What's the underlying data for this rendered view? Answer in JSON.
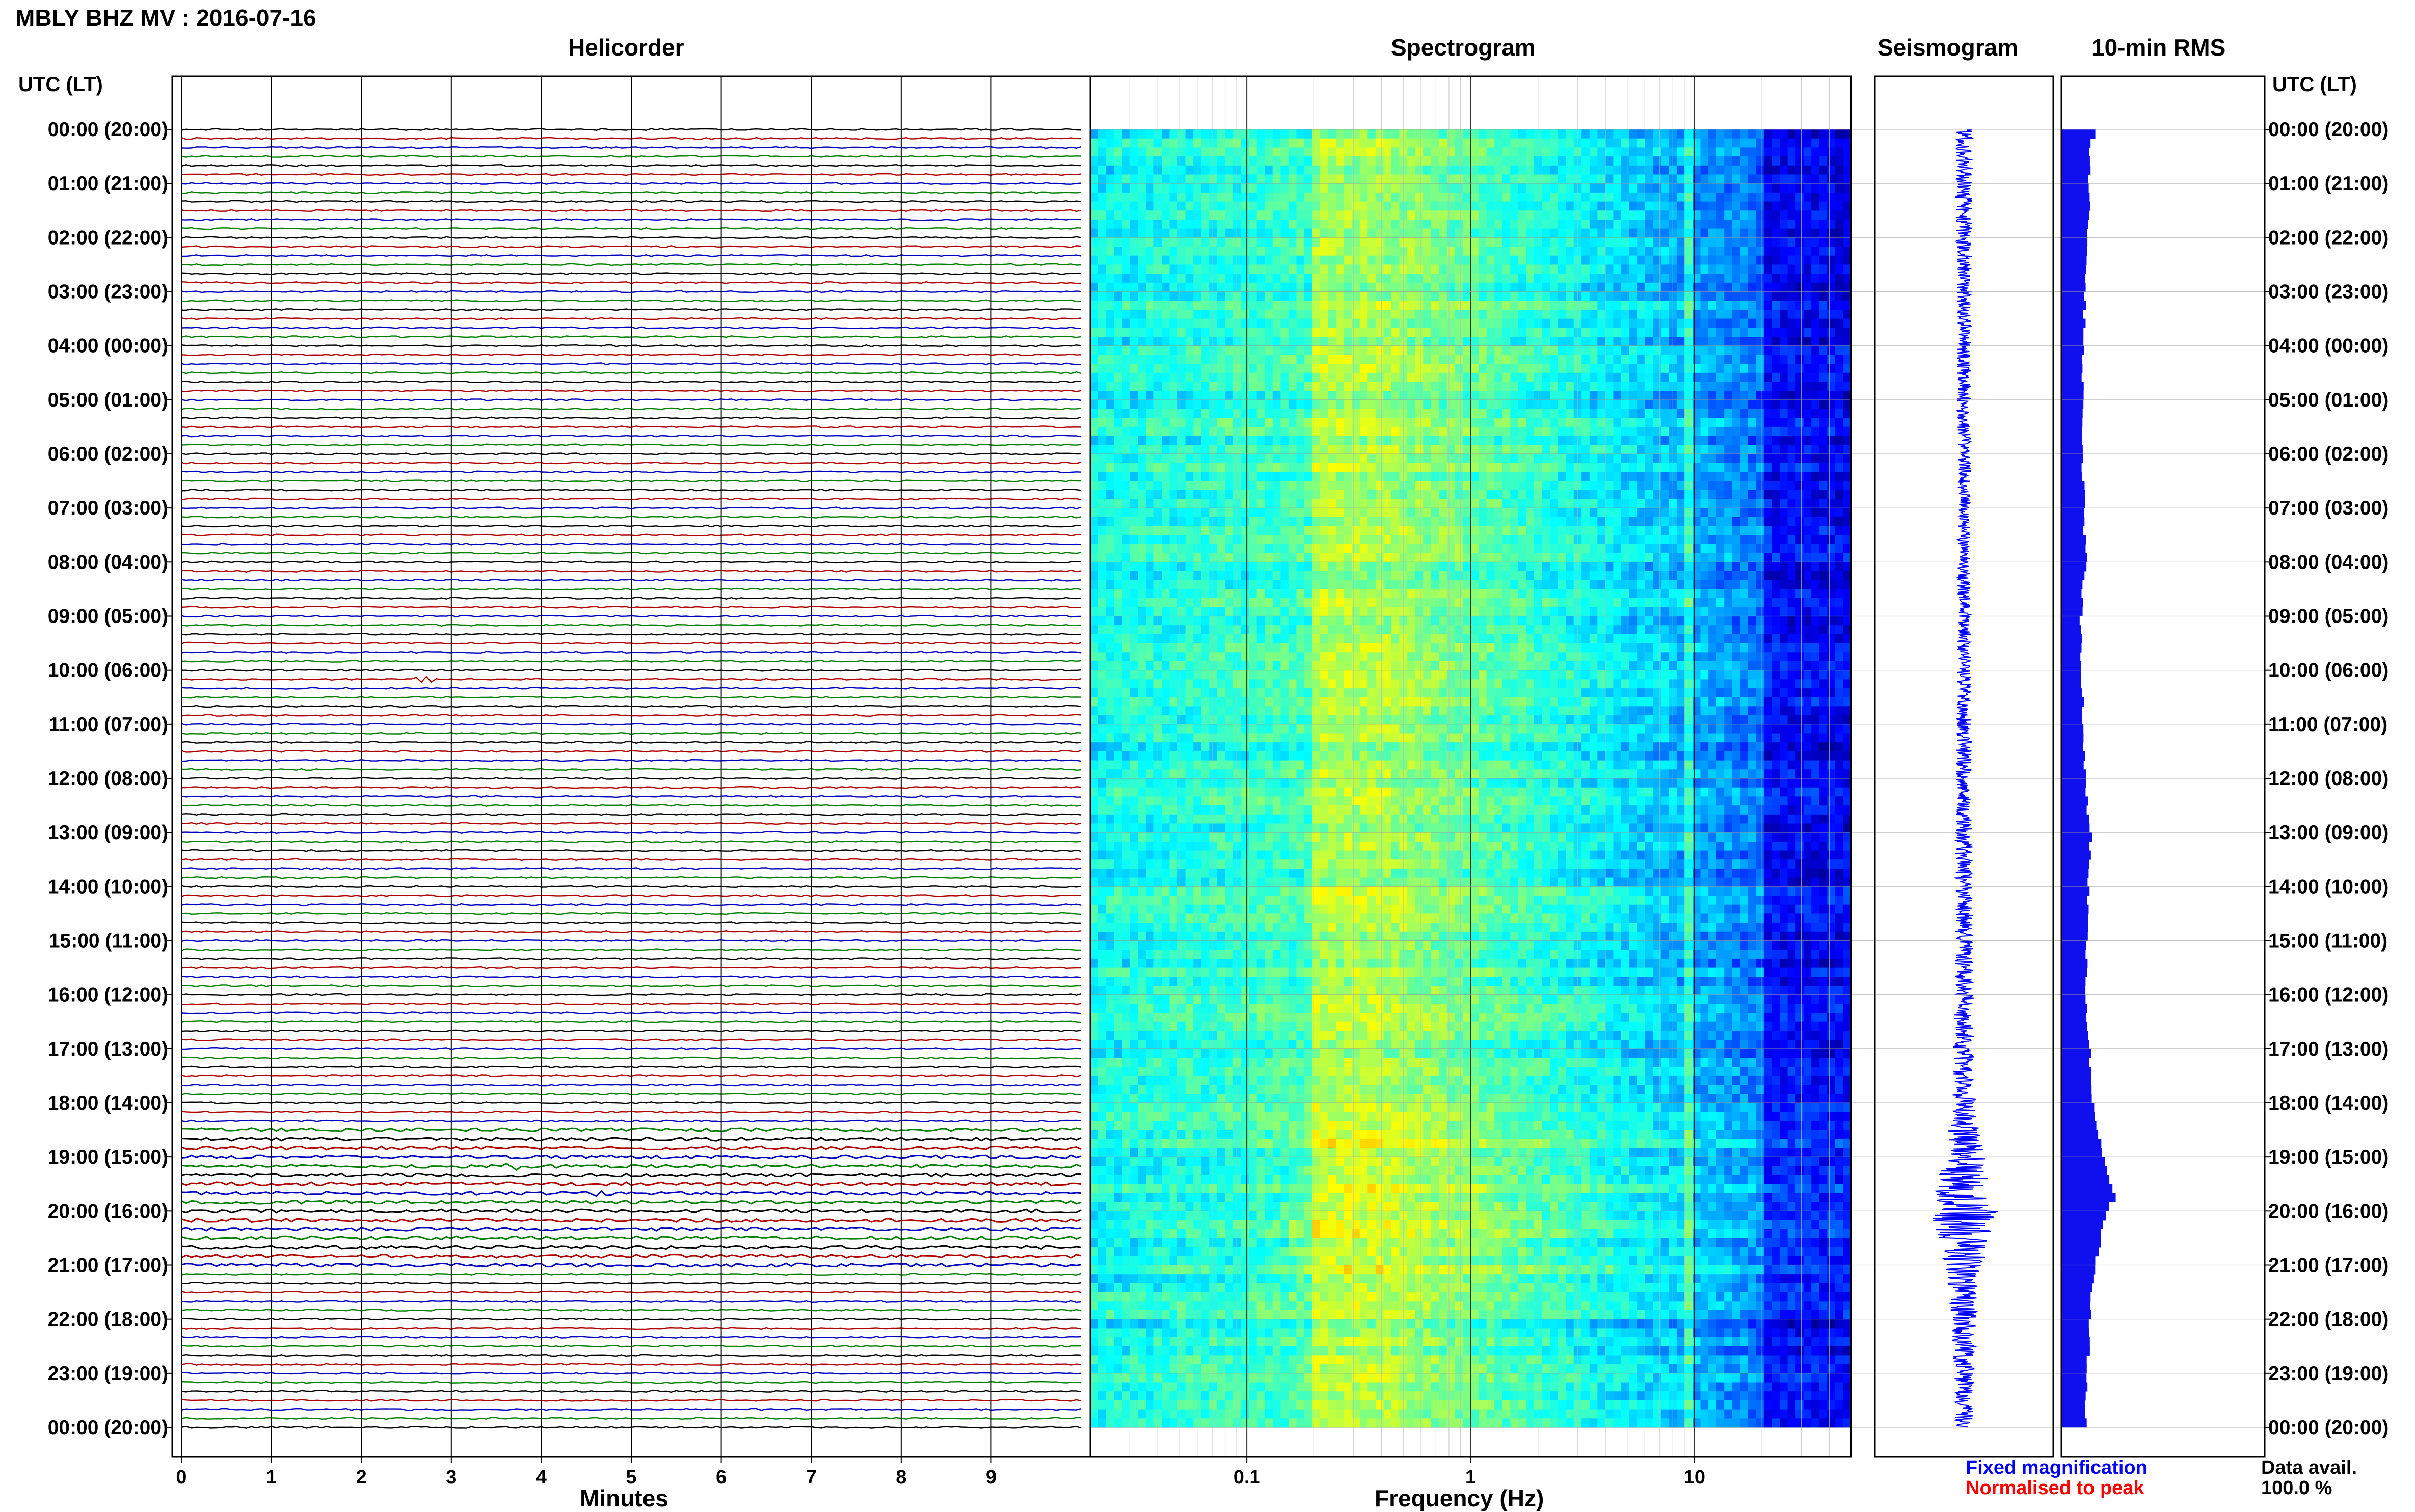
{
  "header": {
    "station_title": "MBLY BHZ MV : 2016-07-16"
  },
  "panels": {
    "helicorder": "Helicorder",
    "spectrogram": "Spectrogram",
    "seismogram": "Seismogram",
    "rms": "10-min RMS"
  },
  "axes": {
    "left_time_label": "UTC (LT)",
    "right_time_label": "UTC (LT)",
    "minutes_label": "Minutes",
    "frequency_label": "Frequency (Hz)"
  },
  "legend": {
    "fixed_magnification": "Fixed magnification",
    "normalised_to_peak": "Normalised to peak",
    "data_avail_label": "Data avail.",
    "data_avail_value": "100.0 %"
  },
  "colors": {
    "trace_cycle": [
      "#000000",
      "#b00000",
      "#0000c0",
      "#008000"
    ],
    "fixed_magnification": "#0000ff",
    "normalised_to_peak": "#ff0000",
    "rms_fill": "#1010ee",
    "seismogram_trace": "#0000ff",
    "grid": "#999999",
    "spectrogram_colormap": "jet"
  },
  "chart_data": [
    {
      "type": "line",
      "panel": "Helicorder",
      "xlabel": "Minutes",
      "x_ticks": [
        "0",
        "1",
        "2",
        "3",
        "4",
        "5",
        "6",
        "7",
        "8",
        "9"
      ],
      "xlim": [
        0,
        10
      ],
      "y_ticks": [
        "00:00 (20:00)",
        "01:00 (21:00)",
        "02:00 (22:00)",
        "03:00 (23:00)",
        "04:00 (00:00)",
        "05:00 (01:00)",
        "06:00 (02:00)",
        "07:00 (03:00)",
        "08:00 (04:00)",
        "09:00 (05:00)",
        "10:00 (06:00)",
        "11:00 (07:00)",
        "12:00 (08:00)",
        "13:00 (09:00)",
        "14:00 (10:00)",
        "15:00 (11:00)",
        "16:00 (12:00)",
        "17:00 (13:00)",
        "18:00 (14:00)",
        "19:00 (15:00)",
        "20:00 (16:00)",
        "21:00 (17:00)",
        "22:00 (18:00)",
        "23:00 (19:00)",
        "00:00 (20:00)"
      ],
      "y_range_hours": [
        0,
        24
      ],
      "traces_per_hour": 6,
      "minutes_per_trace": 10,
      "noisy_hours": [
        18.5,
        21
      ],
      "events": [
        {
          "hour": 10.1,
          "minute": 2.7
        },
        {
          "hour": 19.1,
          "minute": 3.7
        },
        {
          "hour": 19.6,
          "minute": 4.7
        },
        {
          "hour": 19.9,
          "minute": 7.0
        },
        {
          "hour": 20.1,
          "minute": 9.2
        }
      ]
    },
    {
      "type": "heatmap",
      "panel": "Spectrogram",
      "xlabel": "Frequency (Hz)",
      "x_scale": "log",
      "xlim": [
        0.02,
        50
      ],
      "x_ticks": [
        "0.1",
        "1",
        "10"
      ],
      "y_range_hours": [
        0,
        24
      ],
      "colormap": "jet",
      "peak_energy_band_hz": [
        0.2,
        0.4
      ],
      "persistent_line_hz": 9.5,
      "low_power_above_hz": 20
    },
    {
      "type": "line",
      "panel": "Seismogram",
      "y_range_hours": [
        0,
        24
      ],
      "amplitude_envelope": [
        {
          "hour": 0,
          "amp": 0.1
        },
        {
          "hour": 4,
          "amp": 0.08
        },
        {
          "hour": 8,
          "amp": 0.07
        },
        {
          "hour": 12,
          "amp": 0.09
        },
        {
          "hour": 16,
          "amp": 0.11
        },
        {
          "hour": 18,
          "amp": 0.13
        },
        {
          "hour": 19.5,
          "amp": 0.3
        },
        {
          "hour": 20,
          "amp": 0.38
        },
        {
          "hour": 21,
          "amp": 0.22
        },
        {
          "hour": 22,
          "amp": 0.14
        },
        {
          "hour": 24,
          "amp": 0.1
        }
      ]
    },
    {
      "type": "bar",
      "panel": "10-min RMS",
      "orientation": "horizontal",
      "y_range_hours": [
        0,
        24
      ],
      "bins_per_hour": 6,
      "rms_profile": [
        {
          "hour": 0,
          "rms": 0.55
        },
        {
          "hour": 0.5,
          "rms": 0.45
        },
        {
          "hour": 1.5,
          "rms": 0.48
        },
        {
          "hour": 2,
          "rms": 0.42
        },
        {
          "hour": 4,
          "rms": 0.36
        },
        {
          "hour": 6,
          "rms": 0.34
        },
        {
          "hour": 8,
          "rms": 0.4
        },
        {
          "hour": 9,
          "rms": 0.32
        },
        {
          "hour": 11,
          "rms": 0.36
        },
        {
          "hour": 12.5,
          "rms": 0.42
        },
        {
          "hour": 13,
          "rms": 0.5
        },
        {
          "hour": 14,
          "rms": 0.44
        },
        {
          "hour": 16,
          "rms": 0.4
        },
        {
          "hour": 18,
          "rms": 0.52
        },
        {
          "hour": 19,
          "rms": 0.68
        },
        {
          "hour": 19.5,
          "rms": 0.8
        },
        {
          "hour": 19.7,
          "rms": 0.92
        },
        {
          "hour": 20,
          "rms": 0.72
        },
        {
          "hour": 21,
          "rms": 0.56
        },
        {
          "hour": 22,
          "rms": 0.46
        },
        {
          "hour": 24,
          "rms": 0.4
        }
      ]
    }
  ]
}
